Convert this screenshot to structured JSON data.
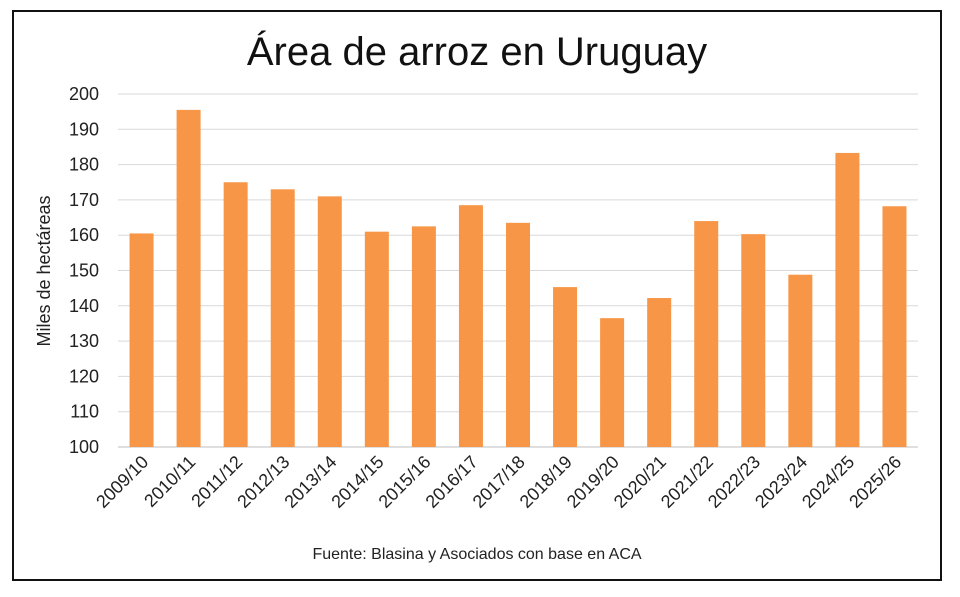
{
  "chart_data": {
    "type": "bar",
    "title": "Área de arroz en Uruguay",
    "ylabel": "Miles de hectáreas",
    "xlabel": "",
    "source": "Fuente: Blasina y Asociados con base en ACA",
    "ylim": [
      100,
      200
    ],
    "yticks": [
      100,
      110,
      120,
      130,
      140,
      150,
      160,
      170,
      180,
      190,
      200
    ],
    "grid": true,
    "bar_color": "#f79646",
    "categories": [
      "2009/10",
      "2010/11",
      "2011/12",
      "2012/13",
      "2013/14",
      "2014/15",
      "2015/16",
      "2016/17",
      "2017/18",
      "2018/19",
      "2019/20",
      "2020/21",
      "2021/22",
      "2022/23",
      "2023/24",
      "2024/25",
      "2025/26"
    ],
    "values": [
      160.5,
      195.5,
      175,
      173,
      171,
      161,
      162.5,
      168.5,
      163.5,
      145.3,
      136.5,
      142.2,
      164,
      160.3,
      148.8,
      183.3,
      168.2
    ]
  }
}
